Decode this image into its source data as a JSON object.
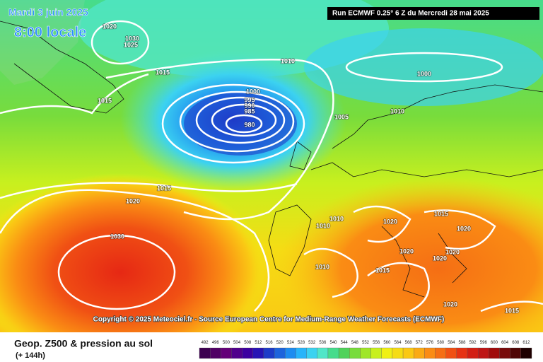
{
  "header": {
    "date": "Mardi 3 juin 2025",
    "time": "8:00 locale",
    "run": "Run ECMWF 0.25° 6 Z du Mercredi 28 mai 2025"
  },
  "copyright": "Copyright © 2025 Meteociel.fr - Source European Centre for Medium-Range Weather Forecasts (ECMWF)",
  "footer": {
    "title": "Geop. Z500 & pression au sol",
    "range": "(+ 144h)"
  },
  "isobars": [
    "1020",
    "1030",
    "1025",
    "1015",
    "1015",
    "1010",
    "1000",
    "1000",
    "995",
    "990",
    "985",
    "980",
    "1005",
    "1010",
    "1015",
    "1020",
    "1030",
    "1010",
    "1010",
    "1020",
    "1015",
    "1020",
    "1020",
    "1020",
    "1020",
    "1010",
    "1015",
    "1020",
    "1015"
  ],
  "legend": {
    "values": [
      492,
      496,
      500,
      504,
      508,
      512,
      516,
      520,
      524,
      528,
      532,
      536,
      540,
      544,
      548,
      552,
      556,
      560,
      564,
      568,
      572,
      576,
      580,
      584,
      588,
      592,
      596,
      600,
      604,
      608,
      612
    ],
    "colors": [
      "#3c0050",
      "#500064",
      "#640078",
      "#50008c",
      "#3c00a0",
      "#2814b4",
      "#1e3cc8",
      "#1e64dc",
      "#1e8cf0",
      "#28b4fa",
      "#3cd2f0",
      "#50e6c8",
      "#46dc8c",
      "#50d25a",
      "#78dc3c",
      "#a0e628",
      "#c8f01e",
      "#f0f014",
      "#f5dc14",
      "#fac814",
      "#faaa14",
      "#fa8c14",
      "#f56e14",
      "#f05014",
      "#e63214",
      "#d21e14",
      "#be1414",
      "#a00a0a",
      "#780a0a",
      "#500505",
      "#1e0000"
    ]
  }
}
